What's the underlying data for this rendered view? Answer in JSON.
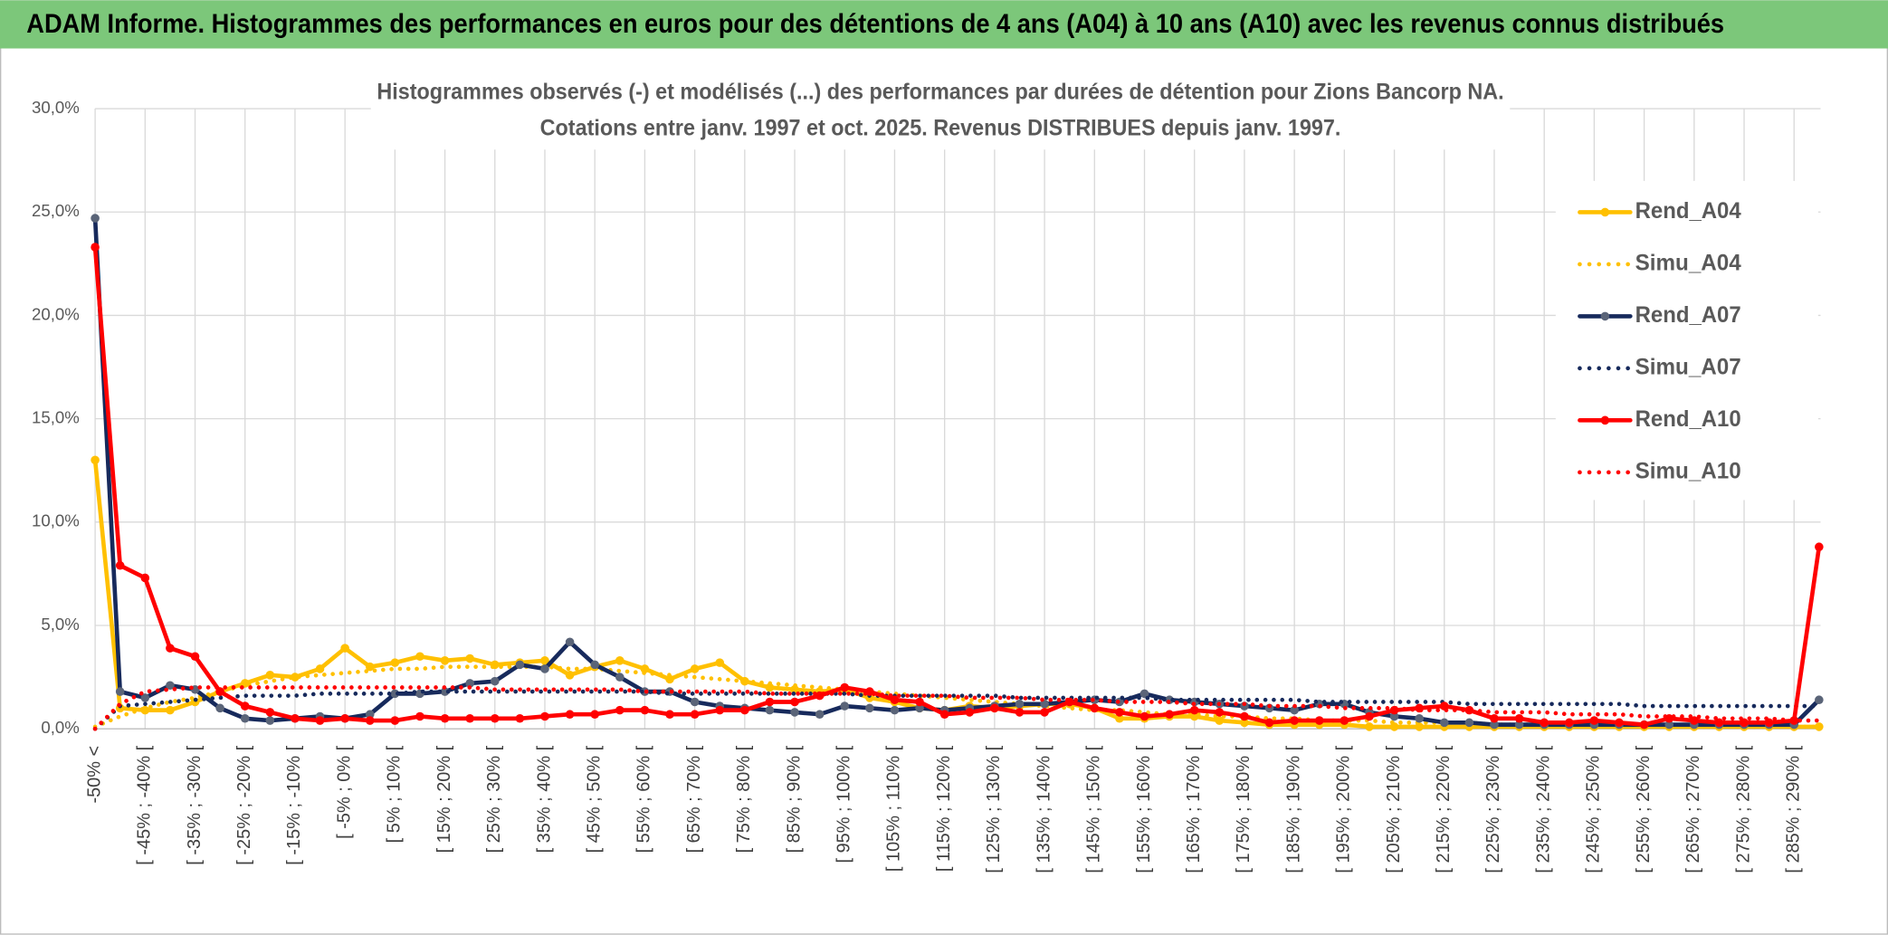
{
  "header": {
    "title": "ADAM Informe. Histogrammes des performances en euros pour des détentions de 4 ans (A04) à 10 ans (A10) avec les revenus connus distribués"
  },
  "chart_data": {
    "type": "line",
    "title": "Histogrammes observés (-) et modélisés (...) des performances par durées de détention pour Zions Bancorp NA.",
    "subtitle": "Cotations entre janv. 1997 et oct. 2025. Revenus DISTRIBUES depuis janv. 1997.",
    "categories": [
      "-50% <",
      null,
      "[ -45% ; -40% [",
      null,
      "[ -35% ; -30% [",
      null,
      "[ -25% ; -20% [",
      null,
      "[ -15% ; -10% [",
      null,
      "[ -5% ; 0% [",
      null,
      "[ 5% ; 10% [",
      null,
      "[ 15% ; 20% [",
      null,
      "[ 25% ; 30% [",
      null,
      "[ 35% ; 40% [",
      null,
      "[ 45% ; 50% [",
      null,
      "[ 55% ; 60% [",
      null,
      "[ 65% ; 70% [",
      null,
      "[ 75% ; 80% [",
      null,
      "[ 85% ; 90% [",
      null,
      "[ 95% ; 100% [",
      null,
      "[ 105% ; 110% [",
      null,
      "[ 115% ; 120% [",
      null,
      "[ 125% ; 130% [",
      null,
      "[ 135% ; 140% [",
      null,
      "[ 145% ; 150% [",
      null,
      "[ 155% ; 160% [",
      null,
      "[ 165% ; 170% [",
      null,
      "[ 175% ; 180% [",
      null,
      "[ 185% ; 190% [",
      null,
      "[ 195% ; 200% [",
      null,
      "[ 205% ; 210% [",
      null,
      "[ 215% ; 220% [",
      null,
      "[ 225% ; 230% [",
      null,
      "[ 235% ; 240% [",
      null,
      "[ 245% ; 250% [",
      null,
      "[ 255% ; 260% [",
      null,
      "[ 265% ; 270% [",
      null,
      "[ 275% ; 280% [",
      null,
      "[ 285% ; 290% [",
      null
    ],
    "series": [
      {
        "name": "Rend_A04",
        "color": "#ffc000",
        "line_style": "solid",
        "markers": true,
        "values": [
          13.0,
          1.0,
          0.9,
          0.9,
          1.3,
          1.8,
          2.2,
          2.6,
          2.5,
          2.9,
          3.9,
          3.0,
          3.2,
          3.5,
          3.3,
          3.4,
          3.1,
          3.2,
          3.3,
          2.6,
          3.0,
          3.3,
          2.9,
          2.4,
          2.9,
          3.2,
          2.3,
          2.0,
          1.9,
          1.8,
          1.9,
          1.5,
          1.3,
          1.0,
          0.9,
          1.1,
          1.0,
          1.1,
          1.2,
          1.2,
          1.0,
          0.5,
          0.5,
          0.6,
          0.6,
          0.4,
          0.3,
          0.2,
          0.2,
          0.2,
          0.2,
          0.1,
          0.1,
          0.1,
          0.1,
          0.1,
          0.1,
          0.1,
          0.1,
          0.1,
          0.1,
          0.1,
          0.1,
          0.1,
          0.1,
          0.1,
          0.1,
          0.1,
          0.1,
          0.1
        ]
      },
      {
        "name": "Simu_A04",
        "color": "#ffc000",
        "line_style": "dotted",
        "markers": false,
        "values": [
          0.1,
          0.6,
          1.0,
          1.3,
          1.5,
          1.8,
          2.1,
          2.3,
          2.5,
          2.6,
          2.7,
          2.8,
          2.9,
          2.9,
          3.0,
          3.0,
          3.0,
          3.0,
          3.0,
          2.9,
          2.9,
          2.8,
          2.7,
          2.6,
          2.5,
          2.4,
          2.3,
          2.2,
          2.1,
          2.0,
          1.9,
          1.8,
          1.7,
          1.6,
          1.5,
          1.4,
          1.3,
          1.2,
          1.1,
          1.0,
          0.9,
          0.9,
          0.8,
          0.7,
          0.7,
          0.6,
          0.6,
          0.5,
          0.5,
          0.4,
          0.4,
          0.4,
          0.3,
          0.3,
          0.3,
          0.3,
          0.2,
          0.2,
          0.2,
          0.2,
          0.2,
          0.2,
          0.2,
          0.2,
          0.1,
          0.1,
          0.1,
          0.1,
          0.1,
          0.1
        ]
      },
      {
        "name": "Rend_A07",
        "color": "#172a5c",
        "marker_color": "#5a6478",
        "line_style": "solid",
        "markers": true,
        "values": [
          24.7,
          1.8,
          1.5,
          2.1,
          1.9,
          1.0,
          0.5,
          0.4,
          0.5,
          0.6,
          0.5,
          0.7,
          1.7,
          1.7,
          1.8,
          2.2,
          2.3,
          3.1,
          2.9,
          4.2,
          3.1,
          2.5,
          1.8,
          1.8,
          1.3,
          1.1,
          1.0,
          0.9,
          0.8,
          0.7,
          1.1,
          1.0,
          0.9,
          1.0,
          0.9,
          1.0,
          1.1,
          1.2,
          1.2,
          1.3,
          1.4,
          1.3,
          1.7,
          1.4,
          1.3,
          1.2,
          1.1,
          1.0,
          0.9,
          1.2,
          1.2,
          0.8,
          0.6,
          0.5,
          0.3,
          0.3,
          0.2,
          0.2,
          0.2,
          0.2,
          0.2,
          0.2,
          0.2,
          0.2,
          0.2,
          0.2,
          0.2,
          0.2,
          0.2,
          1.4
        ]
      },
      {
        "name": "Simu_A07",
        "color": "#172a5c",
        "line_style": "dotted",
        "markers": false,
        "values": [
          0.0,
          1.1,
          1.2,
          1.3,
          1.4,
          1.5,
          1.6,
          1.6,
          1.6,
          1.7,
          1.7,
          1.7,
          1.7,
          1.8,
          1.8,
          1.8,
          1.8,
          1.8,
          1.8,
          1.8,
          1.8,
          1.8,
          1.8,
          1.7,
          1.7,
          1.7,
          1.7,
          1.7,
          1.7,
          1.7,
          1.7,
          1.6,
          1.6,
          1.6,
          1.6,
          1.6,
          1.6,
          1.5,
          1.5,
          1.5,
          1.5,
          1.5,
          1.5,
          1.4,
          1.4,
          1.4,
          1.4,
          1.4,
          1.4,
          1.3,
          1.3,
          1.3,
          1.3,
          1.3,
          1.3,
          1.2,
          1.2,
          1.2,
          1.2,
          1.2,
          1.2,
          1.2,
          1.1,
          1.1,
          1.1,
          1.1,
          1.1,
          1.1,
          1.1,
          1.1
        ]
      },
      {
        "name": "Rend_A10",
        "color": "#ff0000",
        "line_style": "solid",
        "markers": true,
        "values": [
          23.3,
          7.9,
          7.3,
          3.9,
          3.5,
          1.8,
          1.1,
          0.8,
          0.5,
          0.4,
          0.5,
          0.4,
          0.4,
          0.6,
          0.5,
          0.5,
          0.5,
          0.5,
          0.6,
          0.7,
          0.7,
          0.9,
          0.9,
          0.7,
          0.7,
          0.9,
          0.9,
          1.3,
          1.3,
          1.6,
          2.0,
          1.8,
          1.4,
          1.3,
          0.7,
          0.8,
          1.0,
          0.8,
          0.8,
          1.3,
          1.0,
          0.8,
          0.6,
          0.7,
          0.9,
          0.8,
          0.6,
          0.3,
          0.4,
          0.4,
          0.4,
          0.6,
          0.9,
          1.0,
          1.1,
          0.9,
          0.5,
          0.5,
          0.3,
          0.3,
          0.4,
          0.3,
          0.2,
          0.5,
          0.4,
          0.3,
          0.3,
          0.3,
          0.4,
          8.8
        ]
      },
      {
        "name": "Simu_A10",
        "color": "#ff0000",
        "line_style": "dotted",
        "markers": false,
        "values": [
          0.0,
          1.2,
          1.8,
          1.9,
          2.0,
          2.0,
          2.0,
          2.0,
          2.0,
          2.0,
          2.0,
          2.0,
          2.0,
          2.0,
          2.0,
          2.0,
          1.9,
          1.9,
          1.9,
          1.9,
          1.9,
          1.9,
          1.8,
          1.8,
          1.8,
          1.8,
          1.8,
          1.7,
          1.7,
          1.7,
          1.7,
          1.7,
          1.6,
          1.6,
          1.6,
          1.5,
          1.5,
          1.5,
          1.4,
          1.4,
          1.4,
          1.3,
          1.3,
          1.3,
          1.2,
          1.2,
          1.2,
          1.1,
          1.1,
          1.1,
          1.0,
          1.0,
          1.0,
          0.9,
          0.9,
          0.9,
          0.8,
          0.8,
          0.8,
          0.7,
          0.7,
          0.7,
          0.6,
          0.6,
          0.6,
          0.5,
          0.5,
          0.5,
          0.4,
          0.4
        ]
      }
    ],
    "ylim": [
      0,
      30
    ],
    "yticks": [
      {
        "value": 0,
        "label": "0,0%"
      },
      {
        "value": 5,
        "label": "5,0%"
      },
      {
        "value": 10,
        "label": "10,0%"
      },
      {
        "value": 15,
        "label": "15,0%"
      },
      {
        "value": 20,
        "label": "20,0%"
      },
      {
        "value": 25,
        "label": "25,0%"
      },
      {
        "value": 30,
        "label": "30,0%"
      }
    ],
    "grid": true,
    "legend": "right"
  }
}
